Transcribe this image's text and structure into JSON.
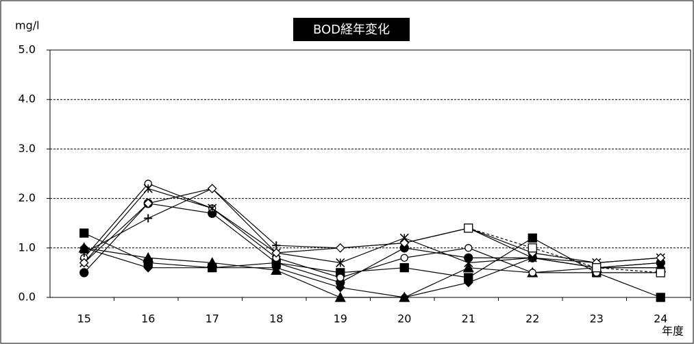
{
  "chart_data": {
    "type": "line",
    "title": "BOD経年変化",
    "y_label": "mg/l",
    "x_label": "年度",
    "categories": [
      "15",
      "16",
      "17",
      "18",
      "19",
      "20",
      "21",
      "22",
      "23",
      "24"
    ],
    "ylim": [
      0,
      5
    ],
    "yticks": [
      {
        "value": 0,
        "label": "0.0"
      },
      {
        "value": 1,
        "label": "1.0"
      },
      {
        "value": 2,
        "label": "2.0"
      },
      {
        "value": 3,
        "label": "3.0"
      },
      {
        "value": 4,
        "label": "4.0"
      },
      {
        "value": 5,
        "label": "5.0"
      }
    ],
    "grid": true,
    "series": [
      {
        "color": "#000000",
        "marker": "square",
        "values": [
          1.3,
          0.7,
          0.6,
          0.7,
          0.5,
          0.6,
          0.4,
          1.2,
          0.5,
          0.0
        ]
      },
      {
        "color": "#000000",
        "marker": "circle",
        "values": [
          0.5,
          1.9,
          1.7,
          0.7,
          0.3,
          1.0,
          0.8,
          0.8,
          0.6,
          0.7
        ]
      },
      {
        "color": "#000000",
        "marker": "triangle",
        "values": [
          1.0,
          0.8,
          0.7,
          0.55,
          0.0,
          0.0,
          0.6,
          0.5,
          0.6,
          0.6
        ]
      },
      {
        "color": "#000000",
        "marker": "diamond",
        "values": [
          1.0,
          0.6,
          0.6,
          0.6,
          0.2,
          0.0,
          0.3,
          0.8,
          0.6,
          0.6
        ]
      },
      {
        "color": "#000000",
        "marker": "open-circle",
        "values": [
          0.8,
          2.3,
          1.8,
          0.8,
          0.4,
          0.8,
          1.0,
          0.5,
          0.5,
          0.5
        ]
      },
      {
        "color": "#000000",
        "marker": "plus",
        "values": [
          0.9,
          1.6,
          2.2,
          1.05,
          1.0,
          1.1,
          1.4,
          0.8,
          0.6,
          0.7
        ]
      },
      {
        "color": "#000000",
        "marker": "asterisk",
        "values": [
          0.7,
          2.2,
          1.8,
          0.9,
          0.7,
          1.2,
          0.7,
          0.8,
          0.7,
          0.8
        ]
      },
      {
        "color": "#000000",
        "marker": "open-diamond",
        "values": [
          0.7,
          1.9,
          2.2,
          0.9,
          1.0,
          1.1,
          1.4,
          0.9,
          0.7,
          0.8
        ]
      },
      {
        "color": "#000000",
        "marker": "open-square",
        "dashed": true,
        "values": [
          null,
          null,
          null,
          null,
          null,
          null,
          1.4,
          1.0,
          0.6,
          0.5
        ]
      }
    ]
  }
}
